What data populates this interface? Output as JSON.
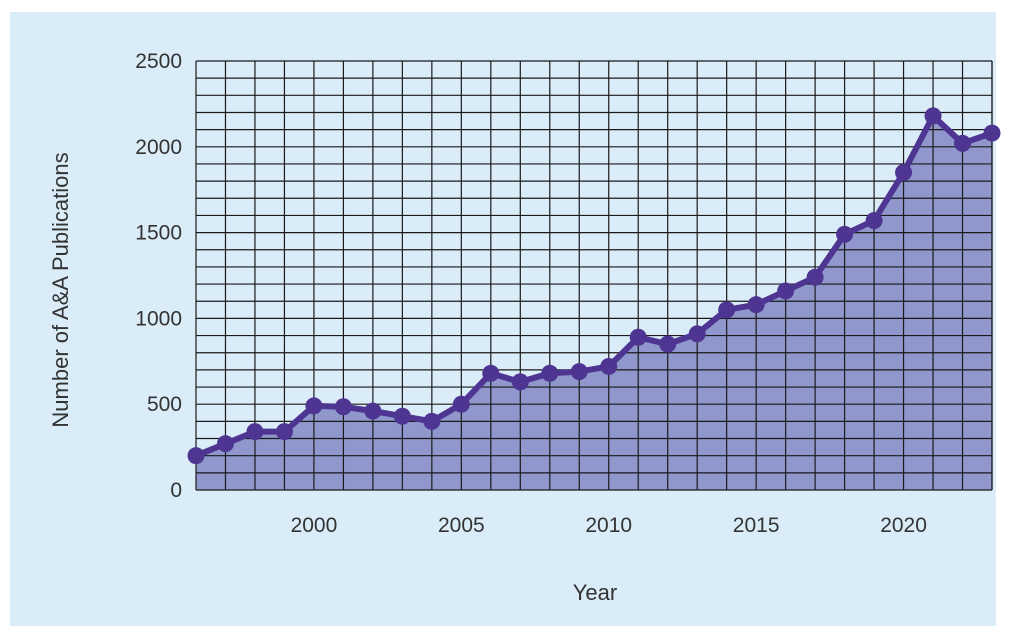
{
  "chart_data": {
    "type": "area",
    "title": "",
    "xlabel": "Year",
    "ylabel": "Number of A&A Publications",
    "xlim": [
      1996,
      2023
    ],
    "ylim": [
      0,
      2500
    ],
    "x_ticks": [
      2000,
      2005,
      2010,
      2015,
      2020
    ],
    "y_ticks": [
      0,
      500,
      1000,
      1500,
      2000,
      2500
    ],
    "grid": true,
    "x": [
      1996,
      1997,
      1998,
      1999,
      2000,
      2001,
      2002,
      2003,
      2004,
      2005,
      2006,
      2007,
      2008,
      2009,
      2010,
      2011,
      2012,
      2013,
      2014,
      2015,
      2016,
      2017,
      2018,
      2019,
      2020,
      2021,
      2022,
      2023
    ],
    "series": [
      {
        "values": [
          200,
          270,
          340,
          340,
          490,
          485,
          460,
          430,
          400,
          500,
          680,
          630,
          680,
          690,
          720,
          890,
          850,
          910,
          1050,
          1080,
          1160,
          1240,
          1490,
          1570,
          1850,
          2180,
          2020,
          2080
        ]
      }
    ],
    "colors": {
      "background": "#d9ecf8",
      "area_fill": "#8f97cd",
      "line": "#4e3592",
      "grid": "#1a1a1a"
    }
  }
}
